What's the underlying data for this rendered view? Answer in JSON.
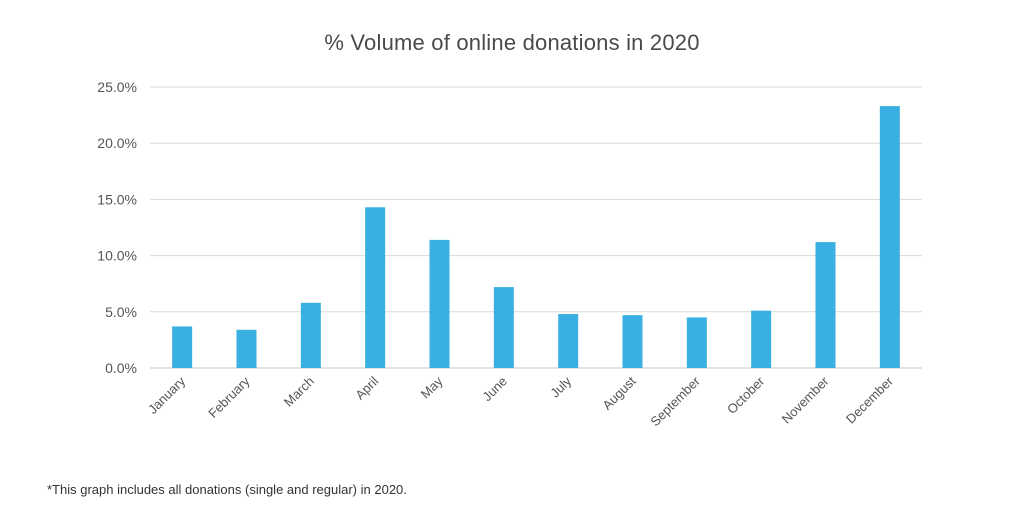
{
  "chart_data": {
    "type": "bar",
    "title": "% Volume of online donations in 2020",
    "xlabel": "",
    "ylabel": "",
    "categories": [
      "January",
      "February",
      "March",
      "April",
      "May",
      "June",
      "July",
      "August",
      "September",
      "October",
      "November",
      "December"
    ],
    "values": [
      3.7,
      3.4,
      5.8,
      14.3,
      11.4,
      7.2,
      4.8,
      4.7,
      4.5,
      5.1,
      11.2,
      23.3
    ],
    "ylim": [
      0,
      25
    ],
    "yticks": [
      0,
      5,
      10,
      15,
      20,
      25
    ],
    "ytick_labels": [
      "0.0%",
      "5.0%",
      "10.0%",
      "15.0%",
      "20.0%",
      "25.0%"
    ],
    "grid": true,
    "legend": "none",
    "bar_color": "#3ab0e2",
    "grid_color": "#d9d9d9"
  },
  "footnote": "*This graph includes all donations (single and regular) in 2020."
}
